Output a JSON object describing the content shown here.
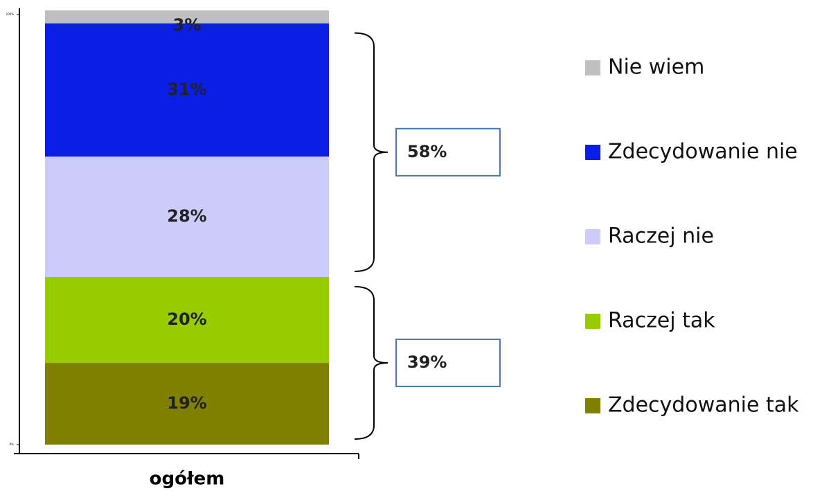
{
  "chart_data": {
    "type": "stacked_bar",
    "categories": [
      "ogółem"
    ],
    "series": [
      {
        "name": "Zdecydowanie tak",
        "color": "#808000",
        "values": [
          19
        ],
        "value_labels": [
          "19%"
        ]
      },
      {
        "name": "Raczej tak",
        "color": "#99cc00",
        "values": [
          20
        ],
        "value_labels": [
          "20%"
        ]
      },
      {
        "name": "Raczej nie",
        "color": "#ccccfa",
        "values": [
          28
        ],
        "value_labels": [
          "28%"
        ]
      },
      {
        "name": "Zdecydowanie nie",
        "color": "#0a1ee6",
        "values": [
          31
        ],
        "value_labels": [
          "31%"
        ]
      },
      {
        "name": "Nie wiem",
        "color": "#c0c0c0",
        "values": [
          3
        ],
        "value_labels": [
          "3%"
        ]
      }
    ],
    "ylim": [
      0,
      101
    ],
    "yticks": [
      {
        "value": 0,
        "label": "0%"
      },
      {
        "value": 100,
        "label": "100%"
      }
    ],
    "brackets": [
      {
        "value": 58,
        "label": "58%",
        "members": [
          "Raczej nie",
          "Zdecydowanie nie"
        ]
      },
      {
        "value": 39,
        "label": "39%",
        "members": [
          "Zdecydowanie tak",
          "Raczej tak"
        ]
      }
    ],
    "legend": "right"
  }
}
